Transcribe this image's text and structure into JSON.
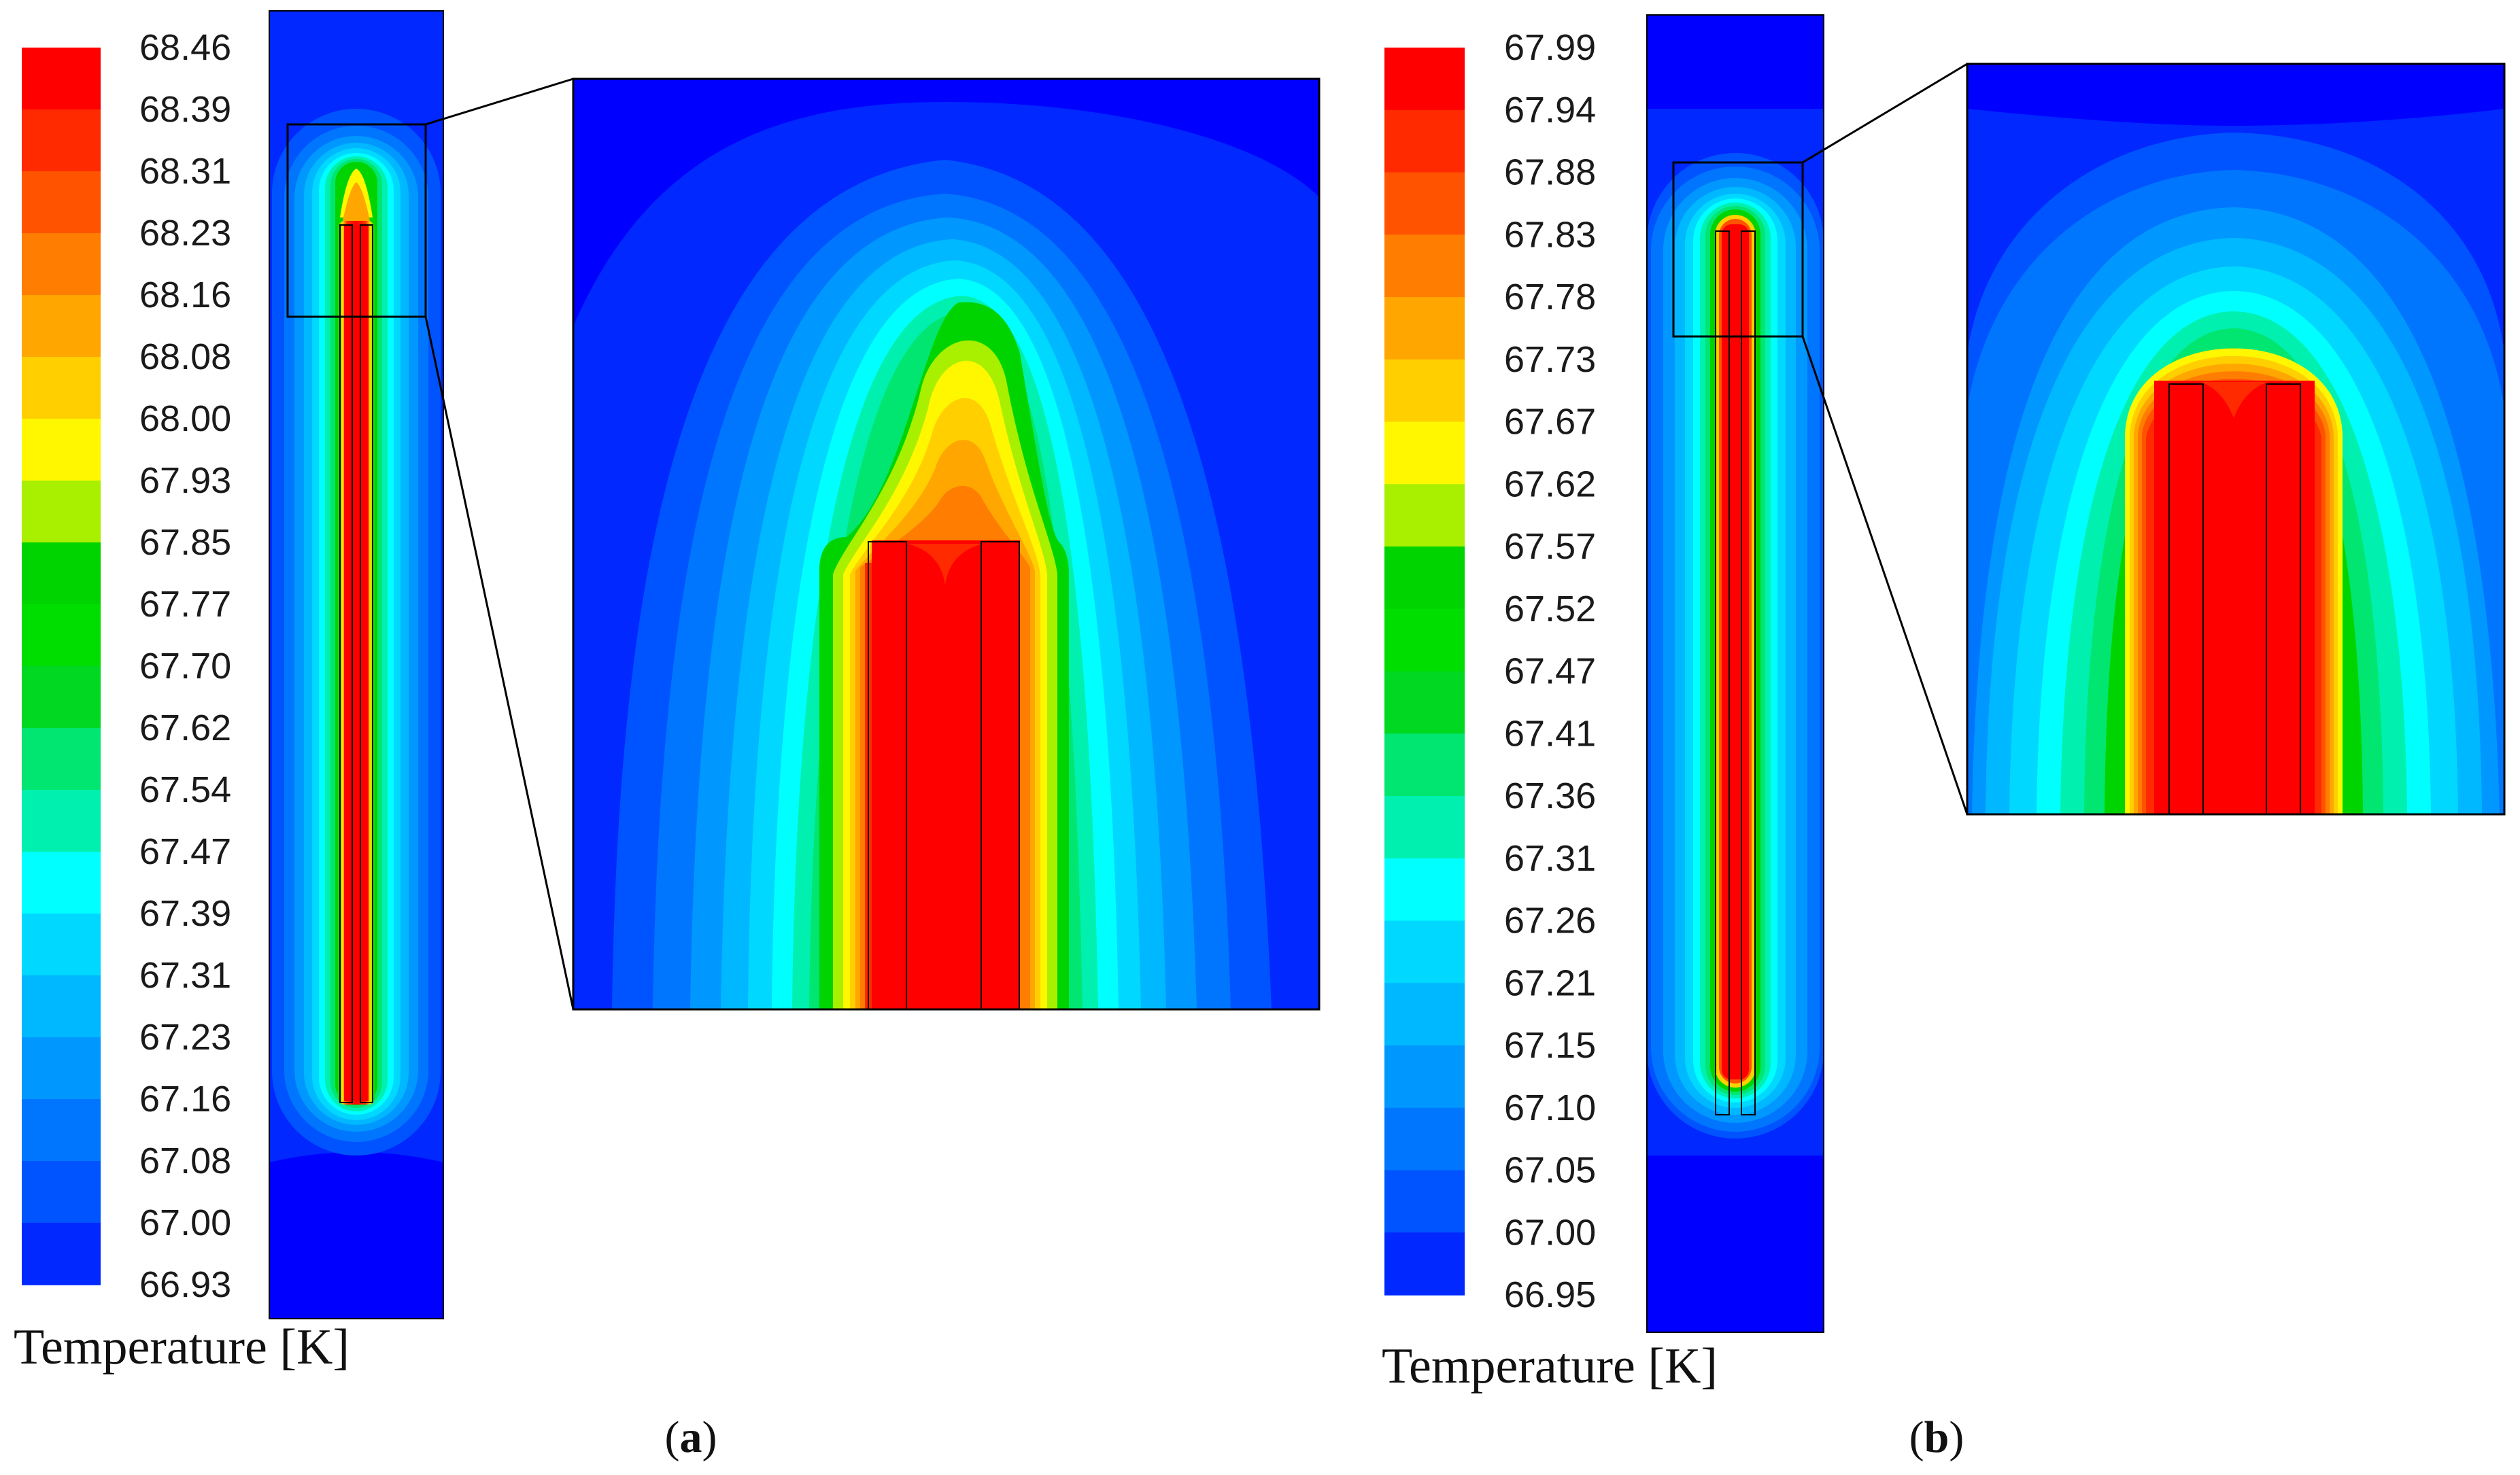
{
  "panels": [
    {
      "id": "a",
      "caption": "a",
      "colorbar_title": "Temperature [K]",
      "ticks": [
        "68.46",
        "68.39",
        "68.31",
        "68.23",
        "68.16",
        "68.08",
        "68.00",
        "67.93",
        "67.85",
        "67.77",
        "67.70",
        "67.62",
        "67.54",
        "67.47",
        "67.39",
        "67.31",
        "67.23",
        "67.16",
        "67.08",
        "67.00",
        "66.93"
      ]
    },
    {
      "id": "b",
      "caption": "b",
      "colorbar_title": "Temperature [K]",
      "ticks": [
        "67.99",
        "67.94",
        "67.88",
        "67.83",
        "67.78",
        "67.73",
        "67.67",
        "67.62",
        "67.57",
        "67.52",
        "67.47",
        "67.41",
        "67.36",
        "67.31",
        "67.26",
        "67.21",
        "67.15",
        "67.10",
        "67.05",
        "67.00",
        "66.95"
      ]
    }
  ],
  "colormap": [
    "#ff0000",
    "#ff2a00",
    "#ff5300",
    "#ff7d00",
    "#ffa600",
    "#ffcf00",
    "#fff700",
    "#a8ef00",
    "#00d400",
    "#00de00",
    "#00d822",
    "#00e670",
    "#00f0b0",
    "#00ffff",
    "#00d8ff",
    "#00b8ff",
    "#0098ff",
    "#0076ff",
    "#0054ff",
    "#0028ff",
    "#0000ff"
  ]
}
